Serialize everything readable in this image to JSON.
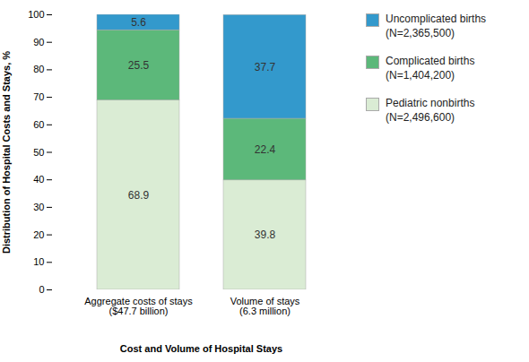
{
  "chart_data": {
    "type": "bar",
    "stacked": true,
    "categories": [
      "Aggregate costs of stays\n($47.7 billion)",
      "Volume of stays\n(6.3 million)"
    ],
    "series": [
      {
        "name": "Pediatric nonbirths\n(N=2,496,600)",
        "color": "#daecd4",
        "values": [
          68.9,
          39.8
        ]
      },
      {
        "name": "Complicated births\n(N=1,404,200)",
        "color": "#5cb87a",
        "values": [
          25.5,
          22.4
        ]
      },
      {
        "name": "Uncomplicated births\n(N=2,365,500)",
        "color": "#3399cc",
        "values": [
          5.6,
          37.7
        ]
      }
    ],
    "xlabel": "Cost and Volume of Hospital Stays",
    "ylabel": "Distribution of Hospital Costs and Stays, %",
    "ylim": [
      0,
      100
    ],
    "yticks": [
      0,
      10,
      20,
      30,
      40,
      50,
      60,
      70,
      80,
      90,
      100
    ],
    "grid": false,
    "legend": "right",
    "data_labels": true
  }
}
